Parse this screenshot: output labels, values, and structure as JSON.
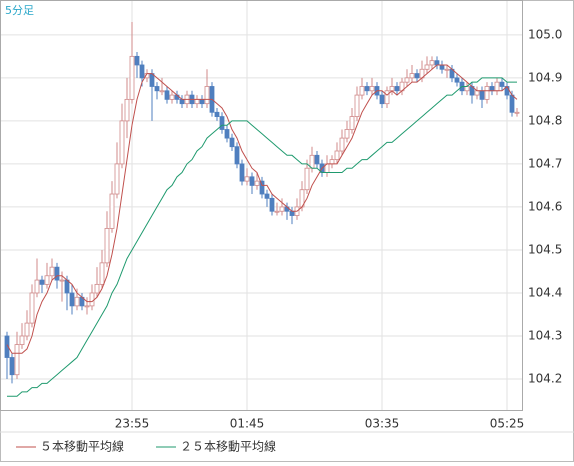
{
  "chart_data": {
    "type": "candlestick",
    "title": "5分足",
    "categories": [
      null,
      null,
      null,
      null,
      null,
      null,
      null,
      null,
      null,
      null,
      null,
      null,
      null,
      null,
      null,
      null,
      null,
      null,
      null,
      null,
      null,
      null,
      null,
      null,
      null,
      "23:55",
      null,
      null,
      null,
      null,
      null,
      null,
      null,
      null,
      null,
      null,
      null,
      null,
      null,
      null,
      null,
      null,
      null,
      null,
      null,
      null,
      null,
      null,
      "01:45",
      null,
      null,
      null,
      null,
      null,
      null,
      null,
      null,
      null,
      null,
      null,
      null,
      null,
      null,
      null,
      null,
      null,
      null,
      null,
      null,
      null,
      null,
      null,
      null,
      null,
      null,
      "03:35",
      null,
      null,
      null,
      null,
      null,
      null,
      null,
      null,
      null,
      null,
      null,
      null,
      null,
      null,
      null,
      null,
      null,
      null,
      null,
      null,
      null,
      null,
      null,
      null,
      "05:25",
      null,
      null
    ],
    "ohlc": [
      [
        104.3,
        104.31,
        104.2,
        104.25
      ],
      [
        104.25,
        104.26,
        104.19,
        104.21
      ],
      [
        104.21,
        104.31,
        104.2,
        104.28
      ],
      [
        104.28,
        104.33,
        104.27,
        104.3
      ],
      [
        104.3,
        104.36,
        104.29,
        104.33
      ],
      [
        104.33,
        104.42,
        104.32,
        104.4
      ],
      [
        104.4,
        104.48,
        104.39,
        104.43
      ],
      [
        104.43,
        104.44,
        104.4,
        104.42
      ],
      [
        104.42,
        104.47,
        104.41,
        104.44
      ],
      [
        104.44,
        104.48,
        104.43,
        104.46
      ],
      [
        104.46,
        104.47,
        104.41,
        104.43
      ],
      [
        104.43,
        104.45,
        104.38,
        104.43
      ],
      [
        104.43,
        104.44,
        104.36,
        104.4
      ],
      [
        104.4,
        104.42,
        104.35,
        104.37
      ],
      [
        104.37,
        104.41,
        104.36,
        104.39
      ],
      [
        104.39,
        104.4,
        104.36,
        104.37
      ],
      [
        104.37,
        104.39,
        104.35,
        104.37
      ],
      [
        104.37,
        104.42,
        104.36,
        104.4
      ],
      [
        104.4,
        104.46,
        104.39,
        104.42
      ],
      [
        104.42,
        104.5,
        104.41,
        104.47
      ],
      [
        104.47,
        104.59,
        104.46,
        104.55
      ],
      [
        104.55,
        104.66,
        104.54,
        104.63
      ],
      [
        104.63,
        104.75,
        104.62,
        104.7
      ],
      [
        104.7,
        104.84,
        104.69,
        104.8
      ],
      [
        104.8,
        104.9,
        104.76,
        104.85
      ],
      [
        104.85,
        105.03,
        104.84,
        104.95
      ],
      [
        104.95,
        104.96,
        104.9,
        104.93
      ],
      [
        104.93,
        104.94,
        104.88,
        104.9
      ],
      [
        104.9,
        104.92,
        104.89,
        104.91
      ],
      [
        104.91,
        104.92,
        104.8,
        104.88
      ],
      [
        104.88,
        104.89,
        104.85,
        104.87
      ],
      [
        104.87,
        104.9,
        104.86,
        104.87
      ],
      [
        104.87,
        104.88,
        104.84,
        104.85
      ],
      [
        104.85,
        104.87,
        104.84,
        104.86
      ],
      [
        104.86,
        104.87,
        104.84,
        104.85
      ],
      [
        104.85,
        104.86,
        104.83,
        104.84
      ],
      [
        104.84,
        104.87,
        104.83,
        104.86
      ],
      [
        104.86,
        104.87,
        104.83,
        104.84
      ],
      [
        104.84,
        104.86,
        104.83,
        104.85
      ],
      [
        104.85,
        104.86,
        104.83,
        104.84
      ],
      [
        104.84,
        104.92,
        104.83,
        104.88
      ],
      [
        104.88,
        104.89,
        104.81,
        104.82
      ],
      [
        104.82,
        104.83,
        104.8,
        104.81
      ],
      [
        104.81,
        104.82,
        104.77,
        104.78
      ],
      [
        104.78,
        104.79,
        104.75,
        104.76
      ],
      [
        104.76,
        104.77,
        104.73,
        104.74
      ],
      [
        104.74,
        104.75,
        104.69,
        104.7
      ],
      [
        104.7,
        104.71,
        104.65,
        104.66
      ],
      [
        104.66,
        104.69,
        104.65,
        104.67
      ],
      [
        104.67,
        104.68,
        104.63,
        104.65
      ],
      [
        104.65,
        104.68,
        104.64,
        104.66
      ],
      [
        104.66,
        104.67,
        104.62,
        104.63
      ],
      [
        104.63,
        104.64,
        104.6,
        104.62
      ],
      [
        104.62,
        104.63,
        104.58,
        104.59
      ],
      [
        104.59,
        104.61,
        104.58,
        104.59
      ],
      [
        104.59,
        104.62,
        104.58,
        104.6
      ],
      [
        104.6,
        104.61,
        104.57,
        104.59
      ],
      [
        104.59,
        104.6,
        104.56,
        104.58
      ],
      [
        104.58,
        104.62,
        104.57,
        104.6
      ],
      [
        104.6,
        104.66,
        104.59,
        104.64
      ],
      [
        104.64,
        104.71,
        104.63,
        104.69
      ],
      [
        104.69,
        104.74,
        104.68,
        104.72
      ],
      [
        104.72,
        104.73,
        104.69,
        104.7
      ],
      [
        104.7,
        104.71,
        104.67,
        104.68
      ],
      [
        104.68,
        104.72,
        104.67,
        104.7
      ],
      [
        104.7,
        104.72,
        104.69,
        104.71
      ],
      [
        104.71,
        104.75,
        104.7,
        104.73
      ],
      [
        104.73,
        104.78,
        104.72,
        104.76
      ],
      [
        104.76,
        104.8,
        104.75,
        104.78
      ],
      [
        104.78,
        104.83,
        104.77,
        104.81
      ],
      [
        104.81,
        104.88,
        104.8,
        104.86
      ],
      [
        104.86,
        104.9,
        104.85,
        104.88
      ],
      [
        104.88,
        104.89,
        104.86,
        104.87
      ],
      [
        104.87,
        104.9,
        104.86,
        104.88
      ],
      [
        104.88,
        104.89,
        104.85,
        104.86
      ],
      [
        104.86,
        104.87,
        104.83,
        104.84
      ],
      [
        104.84,
        104.88,
        104.83,
        104.87
      ],
      [
        104.87,
        104.9,
        104.86,
        104.88
      ],
      [
        104.88,
        104.89,
        104.86,
        104.87
      ],
      [
        104.87,
        104.9,
        104.86,
        104.89
      ],
      [
        104.89,
        104.92,
        104.88,
        104.9
      ],
      [
        104.9,
        104.93,
        104.89,
        104.91
      ],
      [
        104.91,
        104.92,
        104.89,
        104.9
      ],
      [
        104.9,
        104.94,
        104.89,
        104.92
      ],
      [
        104.92,
        104.95,
        104.91,
        104.93
      ],
      [
        104.93,
        104.95,
        104.92,
        104.94
      ],
      [
        104.94,
        104.95,
        104.92,
        104.93
      ],
      [
        104.93,
        104.94,
        104.91,
        104.92
      ],
      [
        104.92,
        104.93,
        104.9,
        104.92
      ],
      [
        104.92,
        104.93,
        104.89,
        104.9
      ],
      [
        104.9,
        104.91,
        104.88,
        104.89
      ],
      [
        104.89,
        104.9,
        104.86,
        104.87
      ],
      [
        104.87,
        104.89,
        104.86,
        104.88
      ],
      [
        104.88,
        104.89,
        104.84,
        104.86
      ],
      [
        104.86,
        104.88,
        104.85,
        104.87
      ],
      [
        104.87,
        104.88,
        104.83,
        104.85
      ],
      [
        104.85,
        104.89,
        104.84,
        104.88
      ],
      [
        104.88,
        104.89,
        104.86,
        104.87
      ],
      [
        104.87,
        104.9,
        104.86,
        104.89
      ],
      [
        104.89,
        104.9,
        104.87,
        104.88
      ],
      [
        104.88,
        104.89,
        104.85,
        104.86
      ],
      [
        104.86,
        104.87,
        104.81,
        104.82
      ],
      [
        104.82,
        104.83,
        104.81,
        104.82
      ]
    ],
    "up_color": "#ffffff",
    "up_edge_color": "#d08a8a",
    "down_color": "#4f7fbf",
    "series": [
      {
        "name": "５本移動平均線",
        "color": "#c0504d",
        "values": [
          104.28,
          104.26,
          104.26,
          104.26,
          104.27,
          104.3,
          104.35,
          104.38,
          104.4,
          104.43,
          104.44,
          104.44,
          104.43,
          104.42,
          104.4,
          104.39,
          104.38,
          104.38,
          104.39,
          104.41,
          104.44,
          104.49,
          104.55,
          104.63,
          104.71,
          104.79,
          104.85,
          104.89,
          104.91,
          104.91,
          104.9,
          104.89,
          104.88,
          104.87,
          104.86,
          104.85,
          104.85,
          104.85,
          104.85,
          104.85,
          104.85,
          104.85,
          104.84,
          104.83,
          104.81,
          104.78,
          104.76,
          104.73,
          104.71,
          104.69,
          104.68,
          104.65,
          104.65,
          104.63,
          104.62,
          104.61,
          104.6,
          104.59,
          104.59,
          104.6,
          104.62,
          104.65,
          104.67,
          104.69,
          104.7,
          104.7,
          104.7,
          104.72,
          104.74,
          104.76,
          104.79,
          104.82,
          104.84,
          104.86,
          104.87,
          104.87,
          104.86,
          104.87,
          104.86,
          104.87,
          104.88,
          104.89,
          104.89,
          104.9,
          104.91,
          104.92,
          104.93,
          104.93,
          104.93,
          104.92,
          104.91,
          104.9,
          104.89,
          104.88,
          104.87,
          104.87,
          104.87,
          104.87,
          104.87,
          104.87,
          104.88,
          104.86,
          104.85
        ]
      },
      {
        "name": "２５本移動平均線",
        "color": "#1f9a6e",
        "values": [
          104.16,
          104.16,
          104.16,
          104.17,
          104.17,
          104.18,
          104.18,
          104.19,
          104.19,
          104.2,
          104.21,
          104.22,
          104.23,
          104.24,
          104.25,
          104.27,
          104.29,
          104.31,
          104.33,
          104.35,
          104.37,
          104.4,
          104.42,
          104.45,
          104.48,
          104.5,
          104.52,
          104.54,
          104.56,
          104.58,
          104.6,
          104.62,
          104.64,
          104.65,
          104.67,
          104.68,
          104.7,
          104.71,
          104.73,
          104.74,
          104.76,
          104.77,
          104.78,
          104.79,
          104.79,
          104.8,
          104.8,
          104.8,
          104.8,
          104.79,
          104.78,
          104.77,
          104.76,
          104.75,
          104.74,
          104.73,
          104.72,
          104.72,
          104.71,
          104.7,
          104.7,
          104.69,
          104.69,
          104.68,
          104.68,
          104.68,
          104.68,
          104.68,
          104.69,
          104.69,
          104.7,
          104.71,
          104.71,
          104.72,
          104.73,
          104.74,
          104.75,
          104.75,
          104.76,
          104.77,
          104.78,
          104.79,
          104.8,
          104.81,
          104.82,
          104.83,
          104.84,
          104.85,
          104.86,
          104.86,
          104.87,
          104.88,
          104.88,
          104.89,
          104.89,
          104.9,
          104.9,
          104.9,
          104.9,
          104.9,
          104.89,
          104.89,
          104.89
        ]
      }
    ],
    "ylim": [
      104.128,
      105.081
    ],
    "yticks": [
      104.2,
      104.3,
      104.4,
      104.5,
      104.6,
      104.7,
      104.8,
      104.9,
      {
        "value": 105,
        "label": "105.0"
      }
    ],
    "grid": true
  }
}
